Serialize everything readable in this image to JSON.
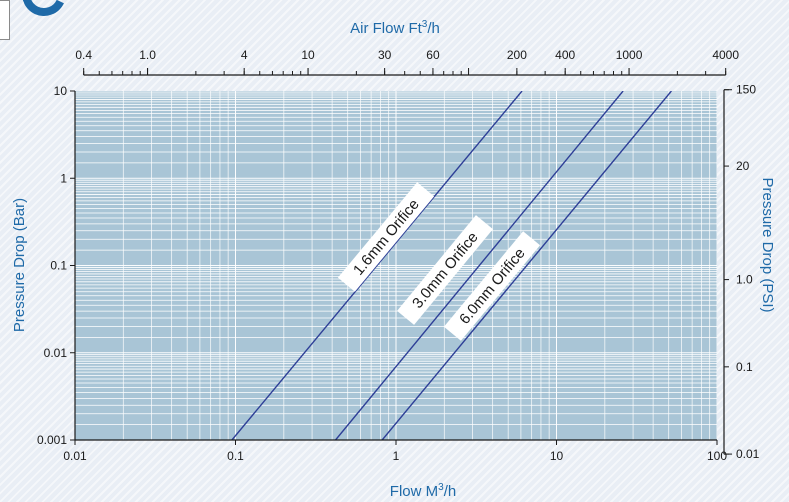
{
  "chart_data": {
    "type": "line",
    "x_scale": "log",
    "y_scale": "log",
    "xlim": [
      0.01,
      100
    ],
    "ylim": [
      0.001,
      10
    ],
    "xlabel": "Flow M",
    "xlabel_superscript": "3",
    "xlabel_suffix": "/h",
    "ylabel": "Pressure Drop (Bar)",
    "x_ticks": [
      "0.01",
      "0.1",
      "1",
      "10",
      "100"
    ],
    "y_ticks": [
      "0.001",
      "0.01",
      "0.1",
      "1",
      "10"
    ],
    "top_axis": {
      "label": "Air Flow Ft",
      "label_superscript": "3",
      "label_suffix": "/h",
      "ticks": [
        {
          "text": "0.4",
          "value": 0.4
        },
        {
          "text": "1.0",
          "value": 1.0
        },
        {
          "text": "4",
          "value": 4
        },
        {
          "text": "10",
          "value": 10
        },
        {
          "text": "30",
          "value": 30
        },
        {
          "text": "60",
          "value": 60
        },
        {
          "text": "200",
          "value": 200
        },
        {
          "text": "400",
          "value": 400
        },
        {
          "text": "1000",
          "value": 1000
        },
        {
          "text": "4000",
          "value": 4000
        }
      ]
    },
    "right_axis": {
      "label": "Pressure Drop (PSI)",
      "ticks": [
        {
          "text": "150",
          "value": 150
        },
        {
          "text": "20",
          "value": 20
        },
        {
          "text": "1.0",
          "value": 1.0
        },
        {
          "text": "0.1",
          "value": 0.1
        },
        {
          "text": "0.01",
          "value": 0.01
        }
      ]
    },
    "series": [
      {
        "name": "1.6mm Orifice",
        "x": [
          0.095,
          6.1
        ],
        "y": [
          0.001,
          10
        ]
      },
      {
        "name": "3.0mm Orifice",
        "x": [
          0.42,
          26
        ],
        "y": [
          0.001,
          10
        ]
      },
      {
        "name": "6.0mm Orifice",
        "x": [
          0.82,
          52
        ],
        "y": [
          0.001,
          10
        ]
      }
    ],
    "grid": true,
    "colors": {
      "plot_bg": "#a9c5d6",
      "grid": "#ffffff",
      "line": "#2e3f97",
      "axis_title": "#1f6aa8"
    }
  }
}
